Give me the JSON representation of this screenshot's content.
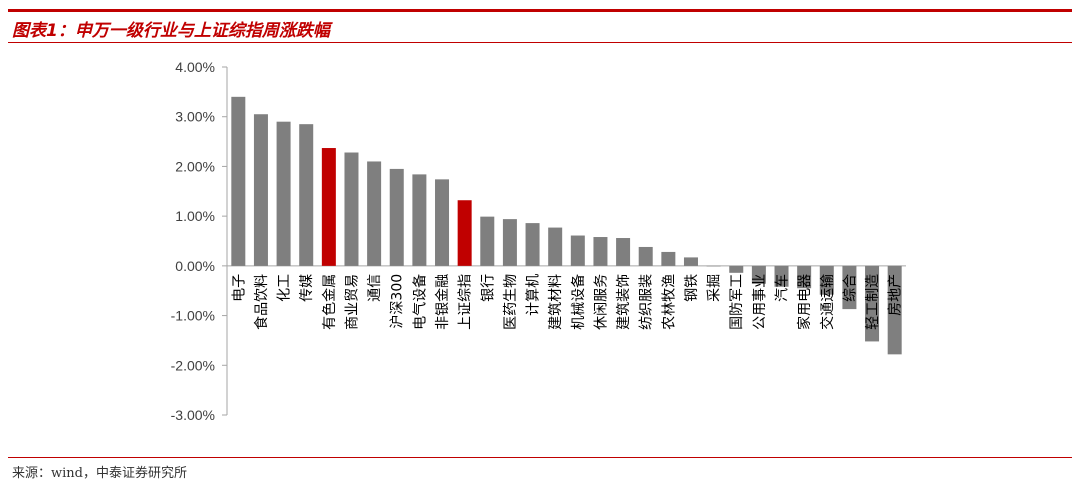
{
  "header": {
    "title": "图表1：申万一级行业与上证综指周涨跌幅"
  },
  "footer": {
    "source": "来源：wind，中泰证券研究所"
  },
  "colors": {
    "bar": "#7f7f7f",
    "highlight": "#c00000",
    "axis": "#a6a6a6"
  },
  "chart_data": {
    "type": "bar",
    "title": "",
    "xlabel": "",
    "ylabel": "",
    "ylim": [
      -0.03,
      0.04
    ],
    "yticks": [
      "4.00%",
      "3.00%",
      "2.00%",
      "1.00%",
      "0.00%",
      "-1.00%",
      "-2.00%",
      "-3.00%"
    ],
    "grid": false,
    "categories": [
      "电子",
      "食品饮料",
      "化工",
      "传媒",
      "有色金属",
      "商业贸易",
      "通信",
      "沪深300",
      "电气设备",
      "非银金融",
      "上证综指",
      "银行",
      "医药生物",
      "计算机",
      "建筑材料",
      "机械设备",
      "休闲服务",
      "建筑装饰",
      "纺织服装",
      "农林牧渔",
      "钢铁",
      "采掘",
      "国防军工",
      "公用事业",
      "汽车",
      "家用电器",
      "交通运输",
      "综合",
      "轻工制造",
      "房地产"
    ],
    "values": [
      0.034,
      0.0305,
      0.029,
      0.0285,
      0.0237,
      0.0228,
      0.021,
      0.0195,
      0.0184,
      0.0174,
      0.0132,
      0.0099,
      0.0094,
      0.0086,
      0.0077,
      0.0061,
      0.0058,
      0.0056,
      0.0038,
      0.0028,
      0.0017,
      -0.0001,
      -0.0014,
      -0.0036,
      -0.0042,
      -0.0045,
      -0.0058,
      -0.0087,
      -0.0152,
      -0.0178
    ],
    "highlight": [
      "有色金属",
      "上证综指"
    ]
  }
}
